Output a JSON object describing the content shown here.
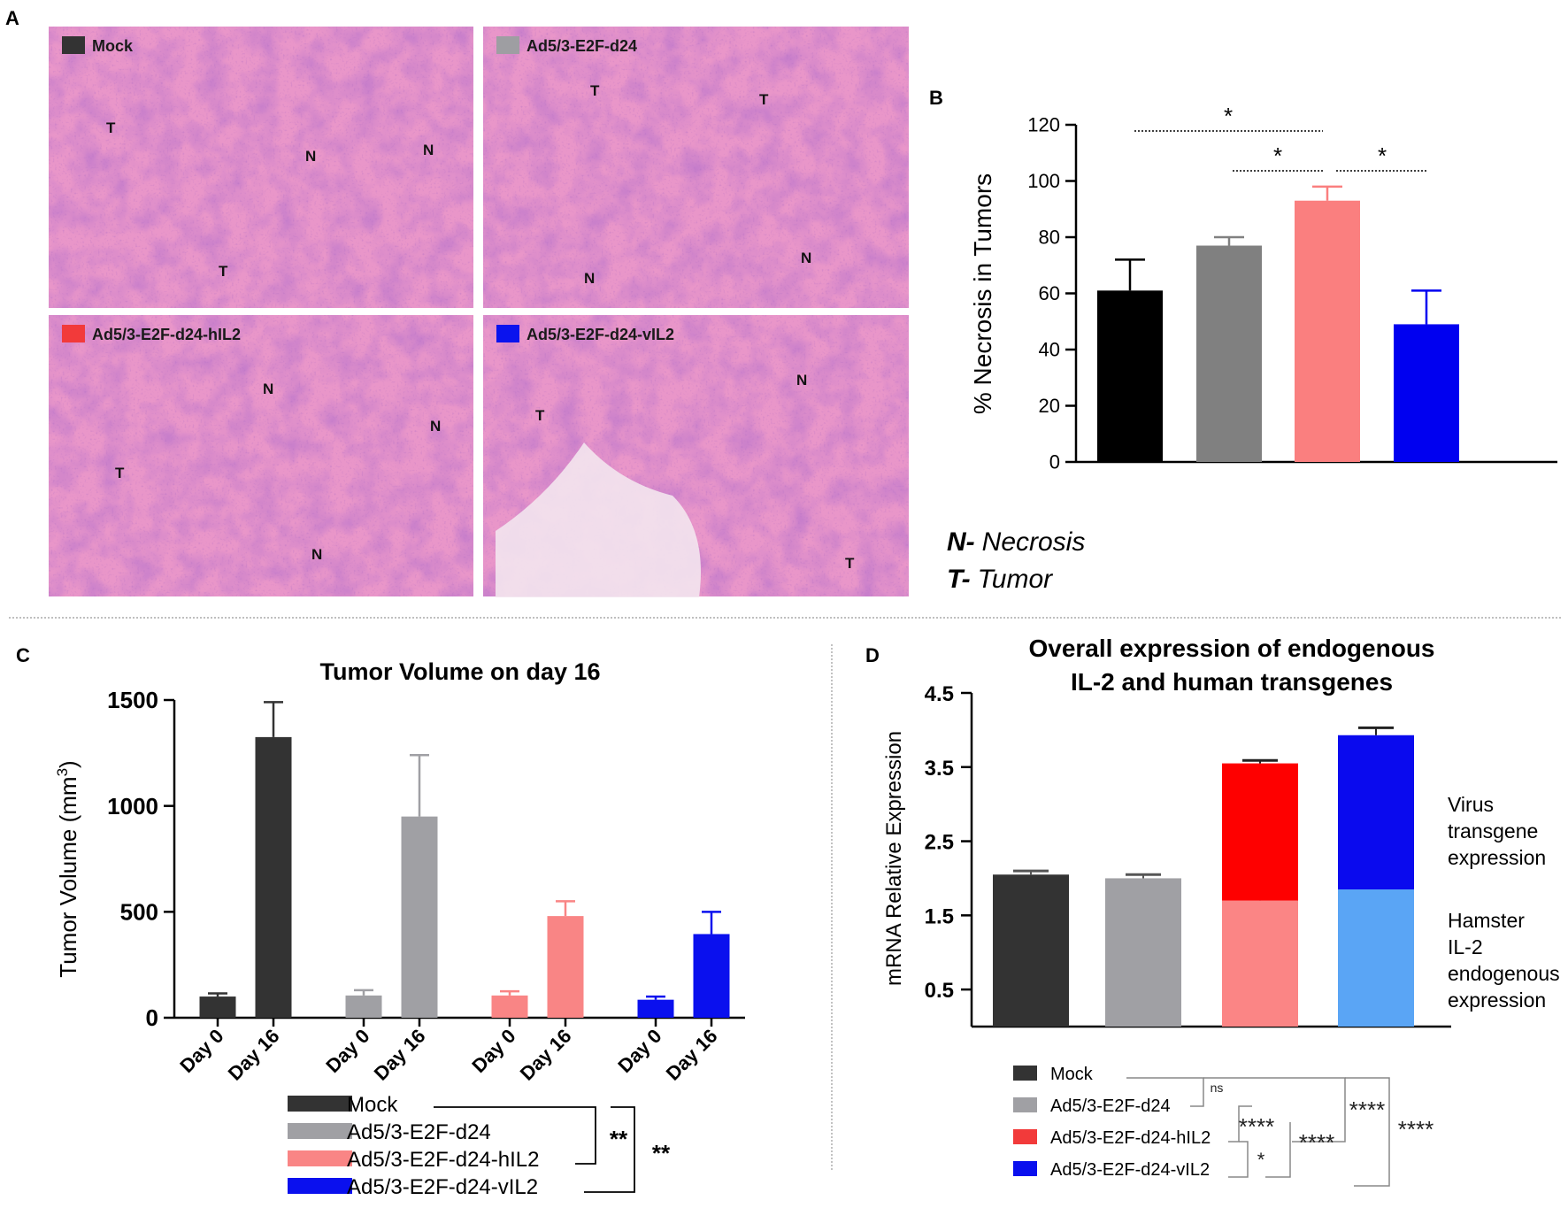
{
  "panel_labels": {
    "a": "A",
    "b": "B",
    "c": "C",
    "d": "D"
  },
  "panel_a": {
    "images": [
      {
        "label": "Mock",
        "color": "#333333",
        "marks": [
          "T",
          "N",
          "N",
          "T"
        ]
      },
      {
        "label": "Ad5/3-E2F-d24",
        "color": "#9e9ea2",
        "marks": [
          "T",
          "T",
          "N",
          "N"
        ]
      },
      {
        "label": "Ad5/3-E2F-d24-hIL2",
        "color": "#f23a3a",
        "marks": [
          "N",
          "T",
          "N",
          "N"
        ]
      },
      {
        "label": "Ad5/3-E2F-d24-vIL2",
        "color": "#0a13ee",
        "marks": [
          "T",
          "N",
          "T"
        ]
      }
    ]
  },
  "legend_nt": {
    "n_key": "N-",
    "n_text": "Necrosis",
    "t_key": "T-",
    "t_text": "Tumor"
  },
  "chart_data": [
    {
      "id": "B",
      "type": "bar",
      "title": "",
      "ylabel": "% Necrosis in Tumors",
      "xlabel": "",
      "ylim": [
        0,
        120
      ],
      "yticks": [
        0,
        20,
        40,
        60,
        80,
        100,
        120
      ],
      "categories": [
        "Mock",
        "Ad5/3-E2F-d24",
        "Ad5/3-E2F-d24-hIL2",
        "Ad5/3-E2F-d24-vIL2"
      ],
      "values": [
        61,
        77,
        93,
        49
      ],
      "errors": [
        11,
        3,
        5,
        12
      ],
      "colors": [
        "#000000",
        "#808080",
        "#fa7f7f",
        "#0000f0"
      ],
      "significance": [
        {
          "from": 0,
          "to": 2,
          "label": "*"
        },
        {
          "from": 1,
          "to": 2,
          "label": "*"
        },
        {
          "from": 2,
          "to": 3,
          "label": "*"
        }
      ]
    },
    {
      "id": "C",
      "type": "bar",
      "title": "Tumor Volume on day 16",
      "ylabel": "Tumor Volume (mm",
      "ylabel_sup": "3",
      "ylabel_end": ")",
      "ylim": [
        0,
        1500
      ],
      "yticks": [
        0,
        500,
        1000,
        1500
      ],
      "groups": [
        {
          "name": "Mock",
          "color": "#333333",
          "labels": [
            "Day 0",
            "Day 16"
          ],
          "values": [
            100,
            1325
          ],
          "errors": [
            15,
            165
          ]
        },
        {
          "name": "Ad5/3-E2F-d24",
          "color": "#a0a0a4",
          "labels": [
            "Day 0",
            "Day 16"
          ],
          "values": [
            105,
            950
          ],
          "errors": [
            25,
            290
          ]
        },
        {
          "name": "Ad5/3-E2F-d24-hIL2",
          "color": "#f98585",
          "labels": [
            "Day 0",
            "Day 16"
          ],
          "values": [
            105,
            480
          ],
          "errors": [
            20,
            70
          ]
        },
        {
          "name": "Ad5/3-E2F-d24-vIL2",
          "color": "#0a10ee",
          "labels": [
            "Day 0",
            "Day 16"
          ],
          "values": [
            85,
            395
          ],
          "errors": [
            15,
            105
          ]
        }
      ],
      "legend": [
        "Mock",
        "Ad5/3-E2F-d24",
        "Ad5/3-E2F-d24-hIL2",
        "Ad5/3-E2F-d24-vIL2"
      ],
      "significance": [
        "**",
        "**"
      ]
    },
    {
      "id": "D",
      "type": "bar",
      "stacked": true,
      "title": "Overall expression of endogenous",
      "title_line2": "IL-2 and human transgenes",
      "ylabel": "mRNA Relative Expression",
      "ylim": [
        0,
        4.5
      ],
      "yticks": [
        0.5,
        1.5,
        2.5,
        3.5,
        4.5
      ],
      "categories": [
        "Mock",
        "Ad5/3-E2F-d24",
        "Ad5/3-E2F-d24-hIL2",
        "Ad5/3-E2F-d24-vIL2"
      ],
      "series": [
        {
          "name": "Hamster IL-2 endogenous expression",
          "values": [
            2.05,
            2.0,
            1.7,
            1.85
          ],
          "errors": [
            0.05,
            0.05,
            0.03,
            0.03
          ],
          "colors": [
            "#333333",
            "#a0a0a4",
            "#fb8585",
            "#5aa5f5"
          ]
        },
        {
          "name": "Virus transgene expression",
          "values": [
            0,
            0,
            1.85,
            2.08
          ],
          "errors": [
            0,
            0,
            0.04,
            0.1
          ],
          "colors": [
            "#333333",
            "#a0a0a4",
            "#fe0000",
            "#0a0aee"
          ]
        }
      ],
      "annotation_virus": [
        "Virus",
        "transgene",
        "expression"
      ],
      "annotation_hamster": [
        "Hamster",
        "IL-2",
        "endogenous",
        "expression"
      ],
      "legend": [
        {
          "label": "Mock",
          "color": "#333333"
        },
        {
          "label": "Ad5/3-E2F-d24",
          "color": "#a0a0a4"
        },
        {
          "label": "Ad5/3-E2F-d24-hIL2",
          "color": "#f23a3a"
        },
        {
          "label": "Ad5/3-E2F-d24-vIL2",
          "color": "#0a10ee"
        }
      ],
      "significance": [
        "ns",
        "****",
        "****",
        "****",
        "****",
        "*"
      ]
    }
  ]
}
